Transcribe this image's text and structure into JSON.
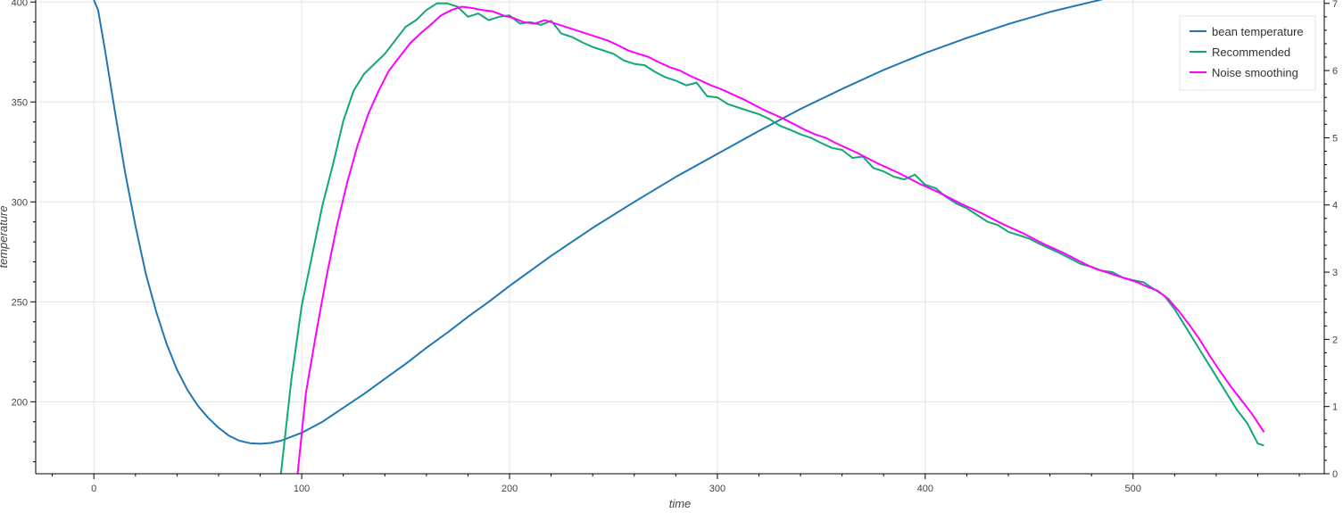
{
  "chart_data": {
    "type": "line",
    "xlabel": "time",
    "ylabel": "temperature",
    "xlim": [
      -28,
      592
    ],
    "ylim": [
      164,
      401
    ],
    "y2lim": [
      0,
      7.05
    ],
    "x_ticks": [
      0,
      100,
      200,
      300,
      400,
      500
    ],
    "y_ticks": [
      200,
      250,
      300,
      350,
      400
    ],
    "y2_ticks": [
      0,
      1,
      2,
      3,
      4,
      5,
      6,
      7
    ],
    "grid": true,
    "legend_position": "top-right",
    "series": [
      {
        "name": "bean temperature",
        "axis": "left",
        "color": "#1f77b4",
        "x": [
          0,
          2,
          5,
          10,
          15,
          20,
          25,
          30,
          35,
          40,
          45,
          50,
          55,
          60,
          65,
          70,
          75,
          80,
          85,
          90,
          100,
          110,
          120,
          130,
          140,
          150,
          160,
          170,
          180,
          190,
          200,
          220,
          240,
          260,
          280,
          300,
          320,
          340,
          360,
          380,
          400,
          420,
          440,
          460,
          480,
          500,
          520,
          540,
          563
        ],
        "y": [
          401,
          396,
          378,
          346,
          315,
          288,
          264,
          245,
          229,
          216,
          206,
          198,
          192,
          187,
          183,
          180.5,
          179.3,
          179,
          179.4,
          180.5,
          184.5,
          190,
          197,
          204,
          211.5,
          219,
          227,
          234.5,
          242.5,
          250,
          258,
          273,
          287,
          300,
          312.5,
          324,
          335.5,
          346.5,
          356.5,
          366,
          374.5,
          382,
          389,
          395,
          400,
          405,
          409.5,
          412,
          413
        ]
      },
      {
        "name": "Recommended",
        "axis": "right",
        "color": "#10a878",
        "x": [
          90,
          95,
          100,
          105,
          110,
          115,
          120,
          125,
          130,
          135,
          140,
          145,
          150,
          155,
          160,
          165,
          170,
          175,
          180,
          185,
          190,
          195,
          200,
          205,
          210,
          215,
          220,
          225,
          230,
          235,
          240,
          245,
          250,
          255,
          260,
          265,
          270,
          275,
          280,
          285,
          290,
          295,
          300,
          305,
          310,
          315,
          320,
          325,
          330,
          335,
          340,
          345,
          350,
          355,
          360,
          365,
          370,
          375,
          380,
          385,
          390,
          395,
          400,
          405,
          410,
          415,
          420,
          425,
          430,
          435,
          440,
          445,
          450,
          455,
          460,
          465,
          470,
          475,
          480,
          485,
          490,
          495,
          500,
          505,
          510,
          515,
          520,
          525,
          530,
          535,
          540,
          545,
          550,
          555,
          560,
          563
        ],
        "y": [
          0,
          1.4,
          2.5,
          3.25,
          4.0,
          4.6,
          5.25,
          5.7,
          5.95,
          6.1,
          6.25,
          6.45,
          6.65,
          6.75,
          6.9,
          7.0,
          7.0,
          6.95,
          6.8,
          6.85,
          6.75,
          6.8,
          6.82,
          6.7,
          6.72,
          6.68,
          6.74,
          6.55,
          6.5,
          6.42,
          6.35,
          6.3,
          6.25,
          6.15,
          6.1,
          6.08,
          5.98,
          5.9,
          5.85,
          5.78,
          5.82,
          5.62,
          5.6,
          5.5,
          5.45,
          5.4,
          5.35,
          5.28,
          5.18,
          5.12,
          5.05,
          5.0,
          4.92,
          4.85,
          4.82,
          4.7,
          4.72,
          4.55,
          4.5,
          4.42,
          4.38,
          4.45,
          4.3,
          4.25,
          4.12,
          4.02,
          3.95,
          3.85,
          3.75,
          3.7,
          3.6,
          3.55,
          3.5,
          3.42,
          3.35,
          3.28,
          3.2,
          3.12,
          3.08,
          3.02,
          3.0,
          2.92,
          2.88,
          2.85,
          2.75,
          2.65,
          2.45,
          2.2,
          1.95,
          1.7,
          1.45,
          1.2,
          0.95,
          0.75,
          0.45,
          0.42
        ]
      },
      {
        "name": "Noise smoothing",
        "axis": "right",
        "color": "#ff00ff",
        "x": [
          98,
          102,
          107,
          112,
          117,
          122,
          127,
          132,
          137,
          142,
          147,
          152,
          157,
          162,
          167,
          172,
          177,
          182,
          187,
          192,
          197,
          202,
          207,
          212,
          217,
          222,
          227,
          232,
          237,
          242,
          247,
          252,
          257,
          262,
          267,
          272,
          277,
          282,
          287,
          292,
          297,
          302,
          307,
          312,
          317,
          322,
          327,
          332,
          337,
          342,
          347,
          352,
          357,
          362,
          367,
          372,
          377,
          382,
          387,
          392,
          397,
          402,
          407,
          412,
          417,
          422,
          427,
          432,
          437,
          442,
          447,
          452,
          457,
          462,
          467,
          472,
          477,
          482,
          487,
          492,
          497,
          502,
          507,
          512,
          517,
          522,
          527,
          532,
          537,
          542,
          547,
          552,
          557,
          563
        ],
        "y": [
          0,
          1.2,
          2.1,
          2.95,
          3.7,
          4.35,
          4.9,
          5.35,
          5.7,
          6.0,
          6.2,
          6.4,
          6.55,
          6.68,
          6.82,
          6.9,
          6.95,
          6.93,
          6.9,
          6.88,
          6.82,
          6.78,
          6.72,
          6.7,
          6.75,
          6.7,
          6.65,
          6.6,
          6.55,
          6.5,
          6.45,
          6.38,
          6.3,
          6.25,
          6.2,
          6.12,
          6.05,
          6.0,
          5.92,
          5.85,
          5.78,
          5.72,
          5.65,
          5.58,
          5.5,
          5.42,
          5.35,
          5.28,
          5.2,
          5.12,
          5.05,
          5.0,
          4.92,
          4.85,
          4.78,
          4.7,
          4.62,
          4.55,
          4.48,
          4.4,
          4.32,
          4.25,
          4.18,
          4.1,
          4.02,
          3.95,
          3.88,
          3.8,
          3.72,
          3.65,
          3.58,
          3.5,
          3.42,
          3.35,
          3.28,
          3.2,
          3.12,
          3.05,
          3.0,
          2.95,
          2.9,
          2.85,
          2.78,
          2.72,
          2.6,
          2.42,
          2.22,
          2.0,
          1.75,
          1.52,
          1.3,
          1.1,
          0.9,
          0.62
        ]
      }
    ]
  }
}
